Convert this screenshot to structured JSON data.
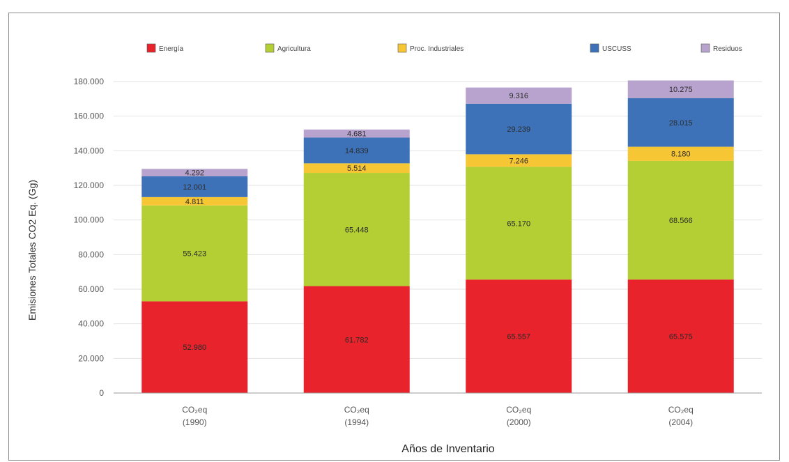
{
  "chart_data": {
    "type": "bar",
    "stacked": true,
    "title": "",
    "ylabel": "Emisiones Totales CO2 Eq. (Gg)",
    "xlabel": "Años de Inventario",
    "ylim": [
      0,
      180000
    ],
    "yticks": [
      0,
      20000,
      40000,
      60000,
      80000,
      100000,
      120000,
      140000,
      160000,
      180000
    ],
    "ytick_labels": [
      "0",
      "20.000",
      "40.000",
      "60.000",
      "80.000",
      "100.000",
      "120.000",
      "140.000",
      "160.000",
      "180.000"
    ],
    "categories": [
      {
        "top": "CO₂eq",
        "bottom": "(1990)"
      },
      {
        "top": "CO₂eq",
        "bottom": "(1994)"
      },
      {
        "top": "CO₂eq",
        "bottom": "(2000)"
      },
      {
        "top": "CO₂eq",
        "bottom": "(2004)"
      }
    ],
    "legend_position": "top",
    "series": [
      {
        "name": "Energía",
        "color": "#e8232b",
        "values": [
          52980,
          61782,
          65557,
          65575
        ],
        "labels": [
          "52.980",
          "61.782",
          "65.557",
          "65.575"
        ]
      },
      {
        "name": "Agricultura",
        "color": "#b3cf33",
        "values": [
          55423,
          65448,
          65170,
          68566
        ],
        "labels": [
          "55.423",
          "65.448",
          "65.170",
          "68.566"
        ]
      },
      {
        "name": "Proc. Industriales",
        "color": "#f7c634",
        "values": [
          4811,
          5514,
          7246,
          8180
        ],
        "labels": [
          "4.811",
          "5.514",
          "7.246",
          "8.180"
        ]
      },
      {
        "name": "USCUSS",
        "color": "#3d72b8",
        "values": [
          12001,
          14839,
          29239,
          28015
        ],
        "labels": [
          "12.001",
          "14.839",
          "29.239",
          "28.015"
        ]
      },
      {
        "name": "Residuos",
        "color": "#b7a3cd",
        "values": [
          4292,
          4681,
          9316,
          10275
        ],
        "labels": [
          "4.292",
          "4.681",
          "9.316",
          "10.275"
        ]
      }
    ]
  }
}
